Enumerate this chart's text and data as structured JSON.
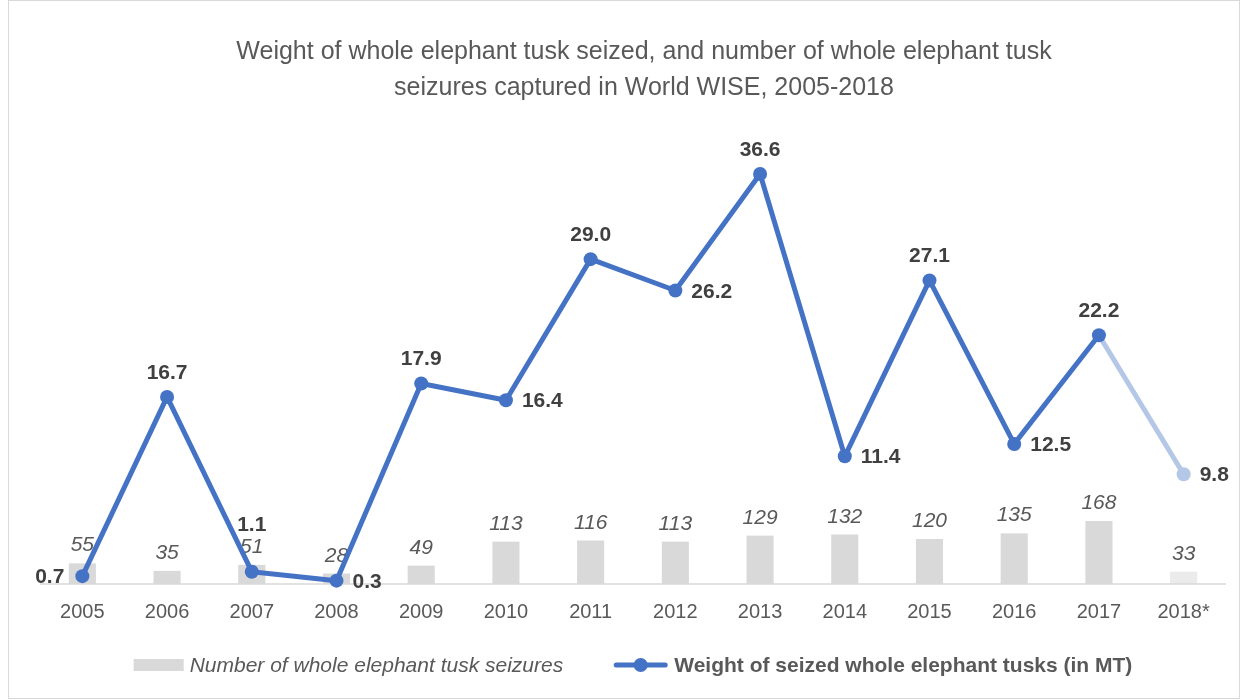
{
  "chart_data": {
    "type": "bar",
    "title": "Weight of whole elephant tusk seized, and number of whole elephant tusk seizures captured in World WISE, 2005-2018",
    "categories": [
      "2005",
      "2006",
      "2007",
      "2008",
      "2009",
      "2010",
      "2011",
      "2012",
      "2013",
      "2014",
      "2015",
      "2016",
      "2017",
      "2018*"
    ],
    "series": [
      {
        "name": "Number of whole elephant tusk seizures",
        "axis": "y2",
        "colors": [
          "#d9d9d9",
          "#d9d9d9",
          "#d9d9d9",
          "#d9d9d9",
          "#d9d9d9",
          "#d9d9d9",
          "#d9d9d9",
          "#d9d9d9",
          "#d9d9d9",
          "#d9d9d9",
          "#d9d9d9",
          "#d9d9d9",
          "#d9d9d9",
          "#ebebeb"
        ],
        "values": [
          55,
          35,
          51,
          28,
          49,
          113,
          116,
          113,
          129,
          132,
          120,
          135,
          168,
          33
        ]
      },
      {
        "name": "Weight of seized whole elephant tusks (in MT)",
        "type": "line",
        "colors": [
          "#4472c4",
          "#4472c4",
          "#4472c4",
          "#4472c4",
          "#4472c4",
          "#4472c4",
          "#4472c4",
          "#4472c4",
          "#4472c4",
          "#4472c4",
          "#4472c4",
          "#4472c4",
          "#4472c4",
          "#b4c7e7"
        ],
        "values": [
          0.7,
          16.7,
          1.1,
          0.3,
          17.9,
          16.4,
          29.0,
          26.2,
          36.6,
          11.4,
          27.1,
          12.5,
          22.2,
          9.8
        ],
        "value_labels": [
          "0.7",
          "16.7",
          "1.1",
          "0.3",
          "17.9",
          "16.4",
          "29.0",
          "26.2",
          "36.6",
          "11.4",
          "27.1",
          "12.5",
          "22.2",
          "9.8"
        ]
      }
    ],
    "tick_labels": "x",
    "data_labels": true,
    "legend": "bottom",
    "marker": "circle",
    "line_style": "solid"
  }
}
